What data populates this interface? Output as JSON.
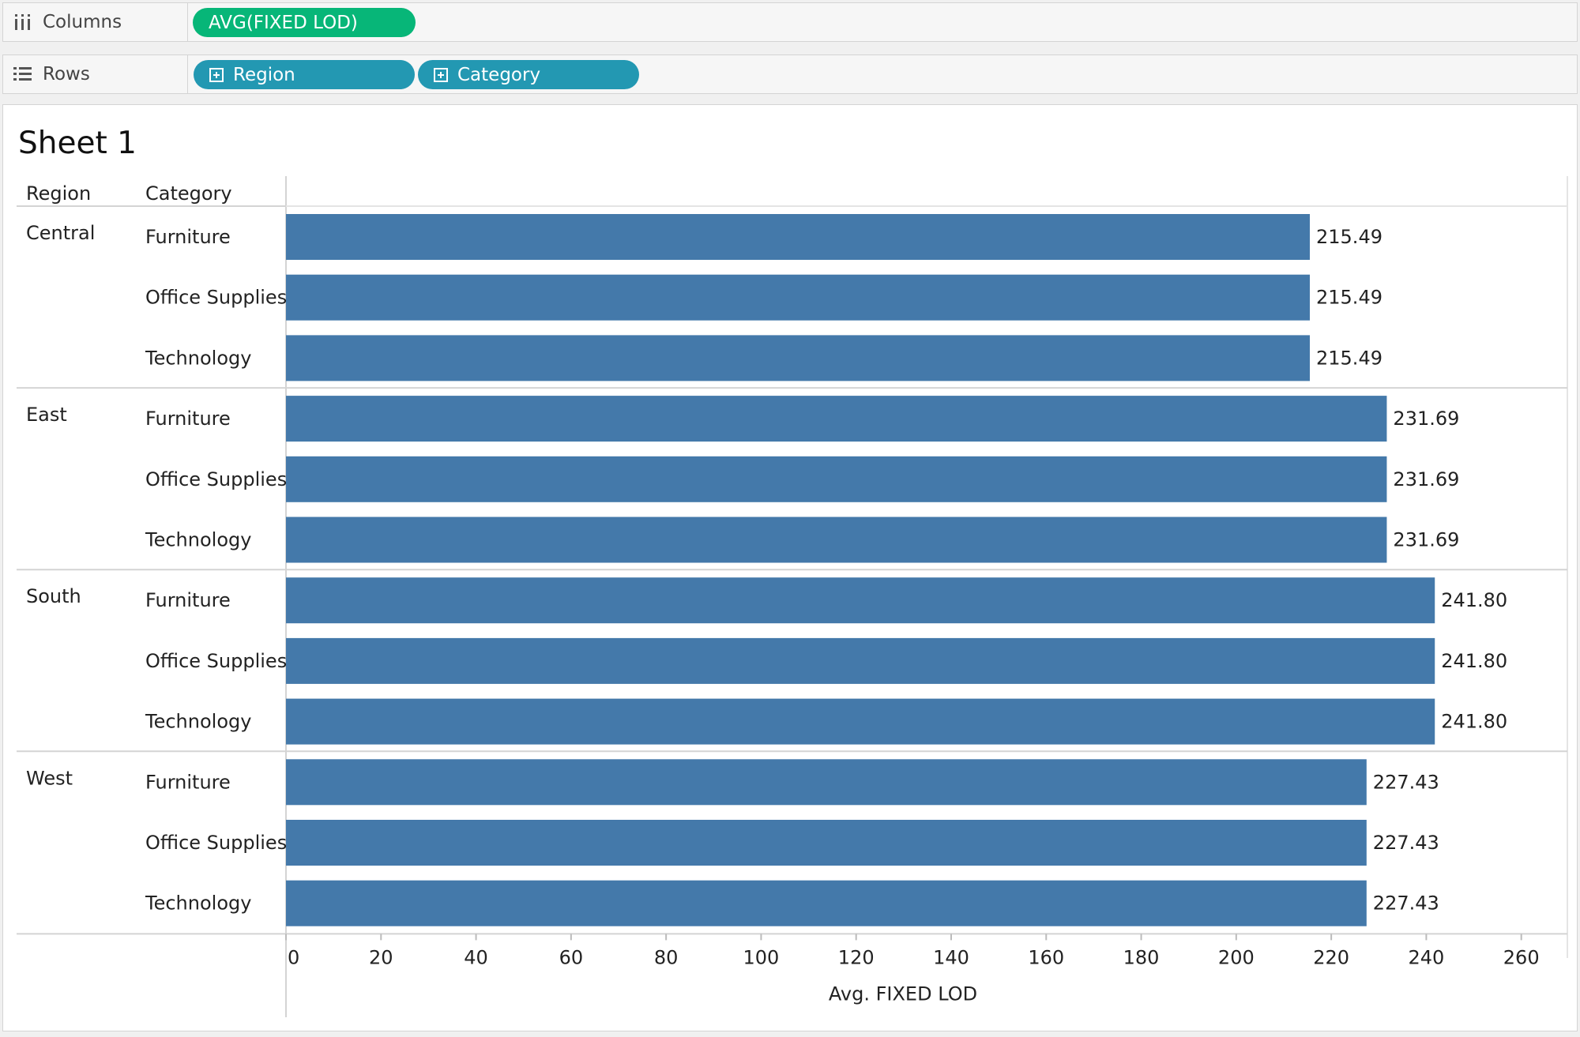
{
  "shelves": {
    "columns": {
      "label": "Columns",
      "pills": [
        "AVG(FIXED LOD)"
      ]
    },
    "rows": {
      "label": "Rows",
      "pills": [
        "Region",
        "Category"
      ]
    }
  },
  "sheet": {
    "title": "Sheet 1",
    "row_headers": [
      "Region",
      "Category"
    ]
  },
  "colors": {
    "bar": "#4479aa",
    "measure_pill": "#07b678",
    "dimension_pill": "#2398b2"
  },
  "chart_data": {
    "type": "bar",
    "orientation": "horizontal",
    "xlabel": "Avg. FIXED LOD",
    "xlim": [
      0,
      270
    ],
    "xticks": [
      0,
      20,
      40,
      60,
      80,
      100,
      120,
      140,
      160,
      180,
      200,
      220,
      240,
      260
    ],
    "groups": [
      {
        "region": "Central",
        "rows": [
          {
            "category": "Furniture",
            "value": 215.49,
            "label": "215.49"
          },
          {
            "category": "Office Supplies",
            "value": 215.49,
            "label": "215.49"
          },
          {
            "category": "Technology",
            "value": 215.49,
            "label": "215.49"
          }
        ]
      },
      {
        "region": "East",
        "rows": [
          {
            "category": "Furniture",
            "value": 231.69,
            "label": "231.69"
          },
          {
            "category": "Office Supplies",
            "value": 231.69,
            "label": "231.69"
          },
          {
            "category": "Technology",
            "value": 231.69,
            "label": "231.69"
          }
        ]
      },
      {
        "region": "South",
        "rows": [
          {
            "category": "Furniture",
            "value": 241.8,
            "label": "241.80"
          },
          {
            "category": "Office Supplies",
            "value": 241.8,
            "label": "241.80"
          },
          {
            "category": "Technology",
            "value": 241.8,
            "label": "241.80"
          }
        ]
      },
      {
        "region": "West",
        "rows": [
          {
            "category": "Furniture",
            "value": 227.43,
            "label": "227.43"
          },
          {
            "category": "Office Supplies",
            "value": 227.43,
            "label": "227.43"
          },
          {
            "category": "Technology",
            "value": 227.43,
            "label": "227.43"
          }
        ]
      }
    ]
  }
}
